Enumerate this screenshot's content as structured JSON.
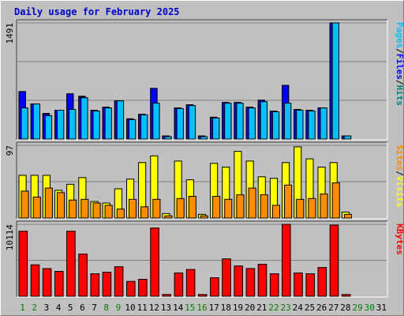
{
  "title": "Daily usage for February 2025",
  "colors": {
    "background": "#c0c0c0",
    "panel": "#c0c0c0",
    "title": "#0000cc",
    "pages": "#00bfff",
    "files": "#0000ff",
    "hits": "#008080",
    "visits": "#ffff00",
    "sites": "#ff8c00",
    "kbytes": "#ff0000",
    "weekday_label": "#000000",
    "weekend_label": "#008000"
  },
  "chart_data": [
    {
      "type": "bar",
      "panel": "hits",
      "ymax_label": "1491",
      "ylim": [
        0,
        1491
      ],
      "legend": [
        "Pages",
        "/",
        "Files",
        "/",
        "Hits"
      ],
      "categories": [
        "1",
        "2",
        "3",
        "4",
        "5",
        "6",
        "7",
        "8",
        "9",
        "10",
        "11",
        "12",
        "13",
        "14",
        "15",
        "16",
        "17",
        "18",
        "19",
        "20",
        "21",
        "22",
        "23",
        "24",
        "25",
        "26",
        "27",
        "28",
        "29",
        "30",
        "31"
      ],
      "series": [
        {
          "name": "Hits",
          "values": [
            610,
            450,
            330,
            370,
            580,
            550,
            370,
            410,
            490,
            260,
            320,
            650,
            40,
            400,
            440,
            40,
            280,
            470,
            470,
            410,
            480,
            360,
            690,
            380,
            370,
            400,
            1491,
            40,
            0,
            0,
            0
          ]
        },
        {
          "name": "Files",
          "values": [
            610,
            450,
            320,
            370,
            580,
            540,
            370,
            410,
            490,
            260,
            320,
            650,
            40,
            400,
            440,
            40,
            280,
            470,
            470,
            410,
            500,
            360,
            690,
            380,
            370,
            400,
            1491,
            40,
            0,
            0,
            0
          ]
        },
        {
          "name": "Pages",
          "values": [
            400,
            450,
            300,
            370,
            380,
            530,
            360,
            400,
            490,
            250,
            310,
            460,
            30,
            390,
            430,
            30,
            270,
            460,
            460,
            400,
            480,
            350,
            460,
            370,
            360,
            400,
            1491,
            40,
            0,
            0,
            0
          ]
        }
      ]
    },
    {
      "type": "bar",
      "panel": "visits",
      "ymax_label": "97",
      "ylim": [
        0,
        97
      ],
      "legend": [
        "Sites",
        "/",
        "Visits"
      ],
      "categories": [
        "1",
        "2",
        "3",
        "4",
        "5",
        "6",
        "7",
        "8",
        "9",
        "10",
        "11",
        "12",
        "13",
        "14",
        "15",
        "16",
        "17",
        "18",
        "19",
        "20",
        "21",
        "22",
        "23",
        "24",
        "25",
        "26",
        "27",
        "28",
        "29",
        "30",
        "31"
      ],
      "series": [
        {
          "name": "Visits",
          "values": [
            57,
            57,
            57,
            37,
            45,
            54,
            22,
            20,
            39,
            52,
            74,
            83,
            6,
            76,
            51,
            5,
            73,
            68,
            89,
            76,
            55,
            53,
            74,
            95,
            79,
            68,
            74,
            8,
            0,
            0,
            0
          ]
        },
        {
          "name": "Sites",
          "values": [
            36,
            28,
            40,
            34,
            24,
            25,
            20,
            17,
            12,
            25,
            15,
            25,
            3,
            26,
            29,
            3,
            29,
            25,
            31,
            40,
            31,
            17,
            44,
            25,
            26,
            32,
            47,
            5,
            0,
            0,
            0
          ]
        }
      ]
    },
    {
      "type": "bar",
      "panel": "kbytes",
      "ymax_label": "10114",
      "ylim": [
        0,
        10114
      ],
      "legend": [
        "KBytes"
      ],
      "categories": [
        "1",
        "2",
        "3",
        "4",
        "5",
        "6",
        "7",
        "8",
        "9",
        "10",
        "11",
        "12",
        "13",
        "14",
        "15",
        "16",
        "17",
        "18",
        "19",
        "20",
        "21",
        "22",
        "23",
        "24",
        "25",
        "26",
        "27",
        "28",
        "29",
        "30",
        "31"
      ],
      "series": [
        {
          "name": "KBytes",
          "values": [
            9150,
            4420,
            3890,
            3500,
            9150,
            5940,
            3170,
            3380,
            4160,
            2090,
            2390,
            9600,
            240,
            3280,
            3770,
            240,
            2600,
            5260,
            4270,
            3900,
            4500,
            3170,
            10114,
            3280,
            3170,
            4050,
            10000,
            240,
            0,
            0,
            0
          ]
        }
      ]
    }
  ],
  "day_labels": [
    {
      "text": "1",
      "weekend": true
    },
    {
      "text": "2",
      "weekend": true
    },
    {
      "text": "3",
      "weekend": false
    },
    {
      "text": "4",
      "weekend": false
    },
    {
      "text": "5",
      "weekend": false
    },
    {
      "text": "6",
      "weekend": false
    },
    {
      "text": "7",
      "weekend": false
    },
    {
      "text": "8",
      "weekend": true
    },
    {
      "text": "9",
      "weekend": true
    },
    {
      "text": "10",
      "weekend": false
    },
    {
      "text": "11",
      "weekend": false
    },
    {
      "text": "12",
      "weekend": false
    },
    {
      "text": "13",
      "weekend": false
    },
    {
      "text": "14",
      "weekend": false
    },
    {
      "text": "15",
      "weekend": true
    },
    {
      "text": "16",
      "weekend": true
    },
    {
      "text": "17",
      "weekend": false
    },
    {
      "text": "18",
      "weekend": false
    },
    {
      "text": "19",
      "weekend": false
    },
    {
      "text": "20",
      "weekend": false
    },
    {
      "text": "21",
      "weekend": false
    },
    {
      "text": "22",
      "weekend": true
    },
    {
      "text": "23",
      "weekend": true
    },
    {
      "text": "24",
      "weekend": false
    },
    {
      "text": "25",
      "weekend": false
    },
    {
      "text": "26",
      "weekend": false
    },
    {
      "text": "27",
      "weekend": false
    },
    {
      "text": "28",
      "weekend": false
    },
    {
      "text": "29",
      "weekend": true
    },
    {
      "text": "30",
      "weekend": true
    },
    {
      "text": "31",
      "weekend": false
    }
  ]
}
